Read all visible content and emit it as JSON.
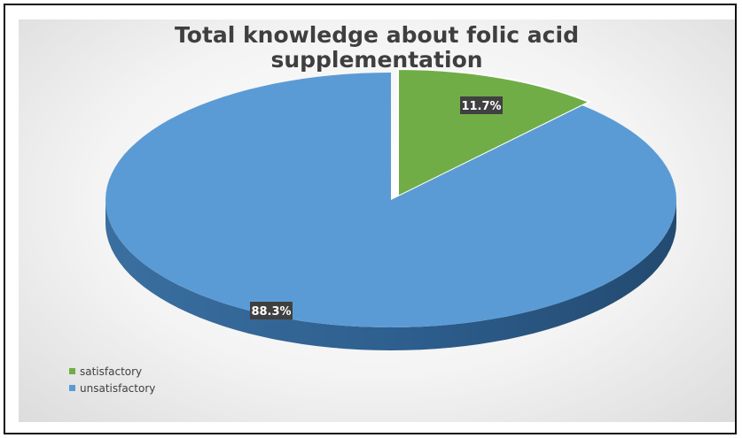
{
  "chart_data": {
    "type": "pie",
    "title_lines": [
      "Total knowledge about folic acid",
      "supplementation"
    ],
    "slices": [
      {
        "name": "satisfactory",
        "value": 11.7,
        "label": "11.7%",
        "color": "#70ad47",
        "side_color": "#4f7f31"
      },
      {
        "name": "unsatisfactory",
        "value": 88.3,
        "label": "88.3%",
        "color": "#5b9bd5",
        "side_color": "#2e5f8f"
      }
    ],
    "legend": {
      "position": "bottom-left",
      "entries": [
        {
          "name": "satisfactory",
          "color": "#70ad47"
        },
        {
          "name": "unsatisfactory",
          "color": "#5b9bd5"
        }
      ]
    }
  }
}
